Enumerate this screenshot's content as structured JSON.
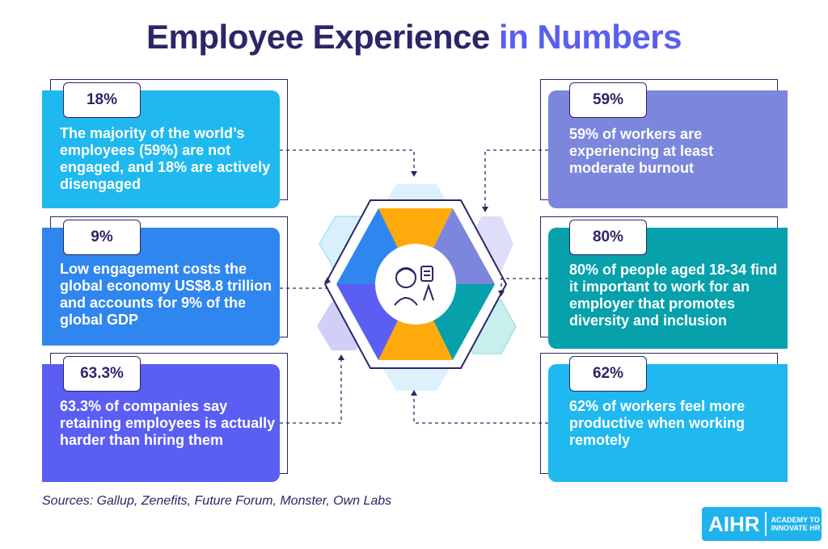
{
  "title": {
    "main": "Employee Experience",
    "accent": "in Numbers"
  },
  "cards": [
    {
      "stat": "18%",
      "text": "The majority of the world’s employees (59%) are not engaged, and 18% are actively disengaged"
    },
    {
      "stat": "9%",
      "text": "Low engagement costs the global economy US$8.8 trillion and accounts for 9% of the global GDP"
    },
    {
      "stat": "63.3%",
      "text": "63.3% of companies say retaining employees is actually harder than hiring them"
    },
    {
      "stat": "59%",
      "text": "59% of workers are experiencing at least moderate burnout"
    },
    {
      "stat": "80%",
      "text": "80% of people aged 18-34 find it important to work for an employer that promotes diversity and inclusion"
    },
    {
      "stat": "62%",
      "text": "62% of workers feel more productive when working remotely"
    }
  ],
  "sources": "Sources: Gallup, Zenefits, Future Forum, Monster, Own Labs",
  "logo": {
    "mark": "AIHR",
    "tagline": "ACADEMY TO INNOVATE HR"
  },
  "colors": {
    "title": "#2b2668",
    "accent": "#5b5ff0",
    "card_sky": "#1fb8ef",
    "card_blue": "#2f86ee",
    "card_indigo": "#5a5ef2",
    "card_lavender": "#7b86dc",
    "card_teal": "#06a1ab",
    "hex_orange": "#ffaa0c"
  },
  "icons": {
    "center": "employee-with-document-icon"
  }
}
